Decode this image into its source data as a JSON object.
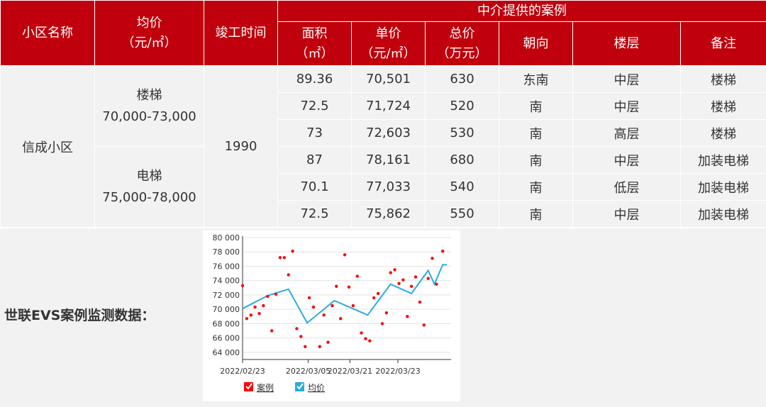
{
  "header": {
    "community_name": "小区名称",
    "avg_price": [
      "均价",
      "（元/㎡）"
    ],
    "completion_year": "竣工时间",
    "agency_cases": "中介提供的案例",
    "area": [
      "面积",
      "（㎡）"
    ],
    "unit_price": [
      "单价",
      "（元/㎡）"
    ],
    "total_price": [
      "总价",
      "（万元）"
    ],
    "orientation": "朝向",
    "floor": "楼层",
    "remarks": "备注"
  },
  "community": {
    "name": "信成小区",
    "year": "1990",
    "groups": [
      {
        "type": "楼梯",
        "range": "70,000-73,000"
      },
      {
        "type": "电梯",
        "range": "75,000-78,000"
      }
    ]
  },
  "rows": [
    {
      "area": "89.36",
      "unit_price": "70,501",
      "total": "630",
      "orientation": "东南",
      "floor": "中层",
      "remark": "楼梯"
    },
    {
      "area": "72.5",
      "unit_price": "71,724",
      "total": "520",
      "orientation": "南",
      "floor": "中层",
      "remark": "楼梯"
    },
    {
      "area": "73",
      "unit_price": "72,603",
      "total": "530",
      "orientation": "南",
      "floor": "高层",
      "remark": "楼梯"
    },
    {
      "area": "87",
      "unit_price": "78,161",
      "total": "680",
      "orientation": "南",
      "floor": "中层",
      "remark": "加装电梯"
    },
    {
      "area": "70.1",
      "unit_price": "77,033",
      "total": "540",
      "orientation": "南",
      "floor": "低层",
      "remark": "加装电梯"
    },
    {
      "area": "72.5",
      "unit_price": "75,862",
      "total": "550",
      "orientation": "南",
      "floor": "中层",
      "remark": "加装电梯"
    }
  ],
  "evs_label": "世联EVS案例监测数据：",
  "colors": {
    "header_red": "#c0000c",
    "cell_gray": "#f2f2f2",
    "case_dot": "#ff0000",
    "avg_line": "#29abe2"
  },
  "chart_data": {
    "type": "scatter",
    "ylim": [
      63000,
      80000
    ],
    "yticks": [
      "80 000",
      "78 000",
      "76 000",
      "74 000",
      "72 000",
      "70 000",
      "68 000",
      "66 000",
      "64 000"
    ],
    "ytick_values": [
      80000,
      78000,
      76000,
      74000,
      72000,
      70000,
      68000,
      66000,
      64000
    ],
    "xticks": [
      "2022/02/23",
      "2022/03/05",
      "2022/03/21",
      "2022/03/23"
    ],
    "xtick_positions": [
      0.0,
      0.315,
      0.515,
      0.745
    ],
    "legend": [
      "案例",
      "均价"
    ],
    "series": [
      {
        "name": "案例",
        "points": [
          [
            0.0,
            73300
          ],
          [
            0.02,
            68700
          ],
          [
            0.04,
            69200
          ],
          [
            0.06,
            70300
          ],
          [
            0.08,
            69400
          ],
          [
            0.1,
            70500
          ],
          [
            0.12,
            71800
          ],
          [
            0.14,
            67000
          ],
          [
            0.16,
            72100
          ],
          [
            0.18,
            77200
          ],
          [
            0.2,
            77200
          ],
          [
            0.22,
            74800
          ],
          [
            0.24,
            78100
          ],
          [
            0.26,
            67300
          ],
          [
            0.28,
            66200
          ],
          [
            0.3,
            64800
          ],
          [
            0.32,
            71600
          ],
          [
            0.34,
            70300
          ],
          [
            0.37,
            64800
          ],
          [
            0.39,
            69200
          ],
          [
            0.41,
            65400
          ],
          [
            0.43,
            70500
          ],
          [
            0.45,
            73200
          ],
          [
            0.47,
            68700
          ],
          [
            0.49,
            77600
          ],
          [
            0.51,
            73100
          ],
          [
            0.53,
            70500
          ],
          [
            0.55,
            74600
          ],
          [
            0.57,
            66700
          ],
          [
            0.59,
            65900
          ],
          [
            0.61,
            65600
          ],
          [
            0.63,
            71600
          ],
          [
            0.65,
            72200
          ],
          [
            0.67,
            68000
          ],
          [
            0.69,
            69500
          ],
          [
            0.71,
            75100
          ],
          [
            0.73,
            75500
          ],
          [
            0.75,
            73600
          ],
          [
            0.77,
            74100
          ],
          [
            0.79,
            69000
          ],
          [
            0.81,
            73200
          ],
          [
            0.83,
            74500
          ],
          [
            0.85,
            71000
          ],
          [
            0.87,
            67800
          ],
          [
            0.89,
            74300
          ],
          [
            0.91,
            77100
          ],
          [
            0.93,
            73500
          ],
          [
            0.96,
            78100
          ]
        ]
      },
      {
        "name": "均价",
        "points": [
          [
            0.0,
            70100
          ],
          [
            0.12,
            71900
          ],
          [
            0.22,
            72800
          ],
          [
            0.31,
            68100
          ],
          [
            0.44,
            71200
          ],
          [
            0.6,
            69200
          ],
          [
            0.71,
            73500
          ],
          [
            0.81,
            72200
          ],
          [
            0.89,
            75400
          ],
          [
            0.92,
            73500
          ],
          [
            0.96,
            76200
          ],
          [
            0.98,
            76200
          ]
        ]
      }
    ]
  }
}
